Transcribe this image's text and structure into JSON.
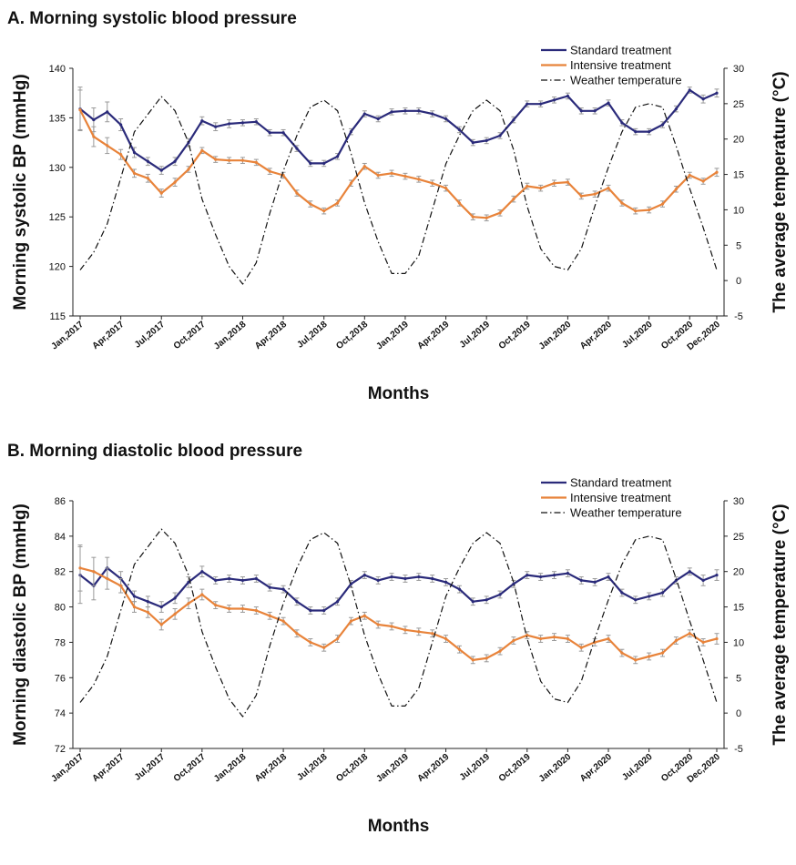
{
  "chart_data": [
    {
      "type": "line",
      "title": "A. Morning systolic blood pressure",
      "xlabel": "Months",
      "ylabel": "Morning systolic BP (mmHg)",
      "y2label": "The average temperature (°C)",
      "ylim": [
        115,
        140
      ],
      "yticks": [
        "115",
        "120",
        "125",
        "130",
        "135",
        "140"
      ],
      "y2lim": [
        -5,
        30
      ],
      "y2ticks": [
        "-5",
        "0",
        "5",
        "10",
        "15",
        "20",
        "25",
        "30"
      ],
      "xticks": [
        "Jan,2017",
        "Apr,2017",
        "Jul,2017",
        "Oct,2017",
        "Jan,2018",
        "Apr,2018",
        "Jul,2018",
        "Oct,2018",
        "Jan,2019",
        "Apr,2019",
        "Jul,2019",
        "Oct,2019",
        "Jan,2020",
        "Apr,2020",
        "Jul,2020",
        "Oct,2020",
        "Dec,2020"
      ],
      "legend_position": "top-right",
      "series": [
        {
          "name": "Standard treatment",
          "color": "#2a2a7a",
          "values": [
            135.9,
            134.8,
            135.6,
            134.3,
            131.5,
            130.6,
            129.7,
            130.6,
            132.5,
            134.7,
            134.1,
            134.4,
            134.5,
            134.6,
            133.5,
            133.5,
            131.9,
            130.4,
            130.4,
            131.1,
            133.6,
            135.4,
            134.9,
            135.6,
            135.7,
            135.7,
            135.4,
            134.9,
            133.8,
            132.5,
            132.7,
            133.2,
            134.8,
            136.4,
            136.4,
            136.8,
            137.2,
            135.7,
            135.7,
            136.5,
            134.5,
            133.6,
            133.6,
            134.3,
            135.9,
            137.8,
            136.9,
            137.5
          ],
          "errors": [
            2.2,
            1.2,
            1.0,
            0.6,
            0.5,
            0.4,
            0.4,
            0.4,
            0.4,
            0.4,
            0.4,
            0.4,
            0.3,
            0.3,
            0.3,
            0.3,
            0.3,
            0.3,
            0.3,
            0.3,
            0.3,
            0.3,
            0.3,
            0.3,
            0.3,
            0.3,
            0.3,
            0.3,
            0.3,
            0.3,
            0.3,
            0.3,
            0.3,
            0.3,
            0.3,
            0.3,
            0.3,
            0.3,
            0.3,
            0.3,
            0.3,
            0.3,
            0.3,
            0.3,
            0.3,
            0.3,
            0.4,
            0.4
          ]
        },
        {
          "name": "Intensive treatment",
          "color": "#e8833a",
          "values": [
            135.8,
            133.1,
            132.2,
            131.3,
            129.4,
            128.9,
            127.4,
            128.5,
            129.8,
            131.7,
            130.8,
            130.7,
            130.7,
            130.5,
            129.6,
            129.2,
            127.4,
            126.3,
            125.6,
            126.4,
            128.4,
            130.1,
            129.2,
            129.4,
            129.1,
            128.8,
            128.4,
            127.9,
            126.4,
            125.0,
            124.9,
            125.4,
            126.8,
            128.1,
            127.9,
            128.4,
            128.5,
            127.1,
            127.3,
            127.9,
            126.4,
            125.6,
            125.7,
            126.3,
            127.8,
            129.2,
            128.6,
            129.5
          ],
          "errors": [
            2.0,
            1.0,
            0.8,
            0.5,
            0.4,
            0.4,
            0.4,
            0.4,
            0.3,
            0.3,
            0.3,
            0.3,
            0.3,
            0.3,
            0.3,
            0.3,
            0.3,
            0.3,
            0.3,
            0.3,
            0.3,
            0.3,
            0.3,
            0.3,
            0.3,
            0.3,
            0.3,
            0.3,
            0.3,
            0.3,
            0.3,
            0.3,
            0.3,
            0.3,
            0.3,
            0.3,
            0.3,
            0.3,
            0.3,
            0.3,
            0.3,
            0.3,
            0.3,
            0.3,
            0.3,
            0.3,
            0.3,
            0.4
          ]
        },
        {
          "name": "Weather temperature",
          "color": "#111111",
          "axis": "right",
          "values": [
            1.5,
            4.0,
            8.0,
            14.5,
            21.0,
            23.5,
            26.0,
            24.0,
            19.5,
            11.5,
            6.5,
            2.0,
            -0.5,
            2.5,
            9.5,
            15.5,
            20.5,
            24.5,
            25.5,
            24.0,
            18.0,
            11.0,
            5.5,
            1.0,
            1.0,
            3.5,
            10.0,
            16.5,
            20.5,
            24.0,
            25.5,
            24.0,
            18.5,
            10.5,
            4.5,
            2.0,
            1.5,
            4.5,
            10.5,
            16.0,
            21.0,
            24.5,
            25.0,
            24.5,
            19.0,
            13.0,
            7.5,
            1.5
          ]
        }
      ]
    },
    {
      "type": "line",
      "title": "B. Morning diastolic blood pressure",
      "xlabel": "Months",
      "ylabel": "Morning diastolic BP (mmHg)",
      "y2label": "The average temperature (°C)",
      "ylim": [
        72,
        86
      ],
      "yticks": [
        "72",
        "74",
        "76",
        "78",
        "80",
        "82",
        "84",
        "86"
      ],
      "y2lim": [
        -5,
        30
      ],
      "y2ticks": [
        "-5",
        "0",
        "5",
        "10",
        "15",
        "20",
        "25",
        "30"
      ],
      "xticks": [
        "Jan,2017",
        "Apr,2017",
        "Jul,2017",
        "Oct,2017",
        "Jan,2018",
        "Apr,2018",
        "Jul,2018",
        "Oct,2018",
        "Jan,2019",
        "Apr,2019",
        "Jul,2019",
        "Oct,2019",
        "Jan,2020",
        "Apr,2020",
        "Jul,2020",
        "Oct,2020",
        "Dec,2020"
      ],
      "legend_position": "top-right",
      "series": [
        {
          "name": "Standard treatment",
          "color": "#2a2a7a",
          "values": [
            81.8,
            81.2,
            82.2,
            81.6,
            80.6,
            80.3,
            80.0,
            80.5,
            81.4,
            82.0,
            81.5,
            81.6,
            81.5,
            81.6,
            81.1,
            81.0,
            80.3,
            79.8,
            79.8,
            80.3,
            81.3,
            81.8,
            81.5,
            81.7,
            81.6,
            81.7,
            81.6,
            81.4,
            81.0,
            80.3,
            80.4,
            80.7,
            81.3,
            81.8,
            81.7,
            81.8,
            81.9,
            81.5,
            81.4,
            81.7,
            80.8,
            80.4,
            80.6,
            80.8,
            81.5,
            82.0,
            81.5,
            81.8
          ],
          "errors": [
            1.6,
            0.8,
            0.6,
            0.4,
            0.3,
            0.3,
            0.3,
            0.3,
            0.3,
            0.3,
            0.2,
            0.2,
            0.2,
            0.2,
            0.2,
            0.2,
            0.2,
            0.2,
            0.2,
            0.2,
            0.2,
            0.2,
            0.2,
            0.2,
            0.2,
            0.2,
            0.2,
            0.2,
            0.2,
            0.2,
            0.2,
            0.2,
            0.2,
            0.2,
            0.2,
            0.2,
            0.2,
            0.2,
            0.2,
            0.2,
            0.2,
            0.2,
            0.2,
            0.2,
            0.2,
            0.2,
            0.3,
            0.3
          ]
        },
        {
          "name": "Intensive treatment",
          "color": "#e8833a",
          "values": [
            82.2,
            82.0,
            81.6,
            81.2,
            80.0,
            79.7,
            79.0,
            79.6,
            80.2,
            80.7,
            80.1,
            79.9,
            79.9,
            79.8,
            79.5,
            79.2,
            78.5,
            78.0,
            77.7,
            78.2,
            79.2,
            79.5,
            79.0,
            78.9,
            78.7,
            78.6,
            78.5,
            78.2,
            77.6,
            77.0,
            77.1,
            77.5,
            78.1,
            78.4,
            78.2,
            78.3,
            78.2,
            77.7,
            78.0,
            78.2,
            77.4,
            77.0,
            77.2,
            77.4,
            78.1,
            78.5,
            78.0,
            78.2
          ],
          "errors": [
            1.3,
            0.8,
            0.6,
            0.4,
            0.3,
            0.3,
            0.3,
            0.3,
            0.3,
            0.3,
            0.2,
            0.2,
            0.2,
            0.2,
            0.2,
            0.2,
            0.2,
            0.2,
            0.2,
            0.2,
            0.2,
            0.2,
            0.2,
            0.2,
            0.2,
            0.2,
            0.2,
            0.2,
            0.2,
            0.2,
            0.2,
            0.2,
            0.2,
            0.2,
            0.2,
            0.2,
            0.2,
            0.2,
            0.2,
            0.2,
            0.2,
            0.2,
            0.2,
            0.2,
            0.2,
            0.2,
            0.2,
            0.3
          ]
        },
        {
          "name": "Weather temperature",
          "color": "#111111",
          "axis": "right",
          "values": [
            1.5,
            4.0,
            8.0,
            14.5,
            21.0,
            23.5,
            26.0,
            24.0,
            19.5,
            11.5,
            6.5,
            2.0,
            -0.5,
            2.5,
            9.5,
            15.5,
            20.5,
            24.5,
            25.5,
            24.0,
            18.0,
            11.0,
            5.5,
            1.0,
            1.0,
            3.5,
            10.0,
            16.5,
            20.5,
            24.0,
            25.5,
            24.0,
            18.5,
            10.5,
            4.5,
            2.0,
            1.5,
            4.5,
            10.5,
            16.0,
            21.0,
            24.5,
            25.0,
            24.5,
            19.0,
            13.0,
            7.5,
            1.5
          ]
        }
      ]
    }
  ]
}
